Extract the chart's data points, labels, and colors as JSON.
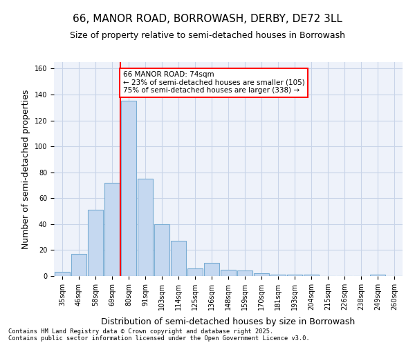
{
  "title1": "66, MANOR ROAD, BORROWASH, DERBY, DE72 3LL",
  "title2": "Size of property relative to semi-detached houses in Borrowash",
  "xlabel": "Distribution of semi-detached houses by size in Borrowash",
  "ylabel": "Number of semi-detached properties",
  "bins": [
    "35sqm",
    "46sqm",
    "58sqm",
    "69sqm",
    "80sqm",
    "91sqm",
    "103sqm",
    "114sqm",
    "125sqm",
    "136sqm",
    "148sqm",
    "159sqm",
    "170sqm",
    "181sqm",
    "193sqm",
    "204sqm",
    "215sqm",
    "226sqm",
    "238sqm",
    "249sqm",
    "260sqm"
  ],
  "bar_heights": [
    3,
    17,
    51,
    72,
    135,
    75,
    40,
    27,
    6,
    10,
    5,
    4,
    2,
    1,
    1,
    1,
    0,
    0,
    0,
    1,
    0
  ],
  "bar_color": "#c5d8f0",
  "bar_edge_color": "#7aadd4",
  "vline_x_index": 4,
  "vline_color": "red",
  "annotation_text": "66 MANOR ROAD: 74sqm\n← 23% of semi-detached houses are smaller (105)\n75% of semi-detached houses are larger (338) →",
  "annotation_box_color": "white",
  "annotation_box_edge_color": "red",
  "grid_color": "#c8d4e8",
  "background_color": "#eef2fa",
  "ylim": [
    0,
    165
  ],
  "yticks": [
    0,
    20,
    40,
    60,
    80,
    100,
    120,
    140,
    160
  ],
  "footnote": "Contains HM Land Registry data © Crown copyright and database right 2025.\nContains public sector information licensed under the Open Government Licence v3.0.",
  "title1_fontsize": 11,
  "title2_fontsize": 9,
  "tick_fontsize": 7,
  "label_fontsize": 9
}
